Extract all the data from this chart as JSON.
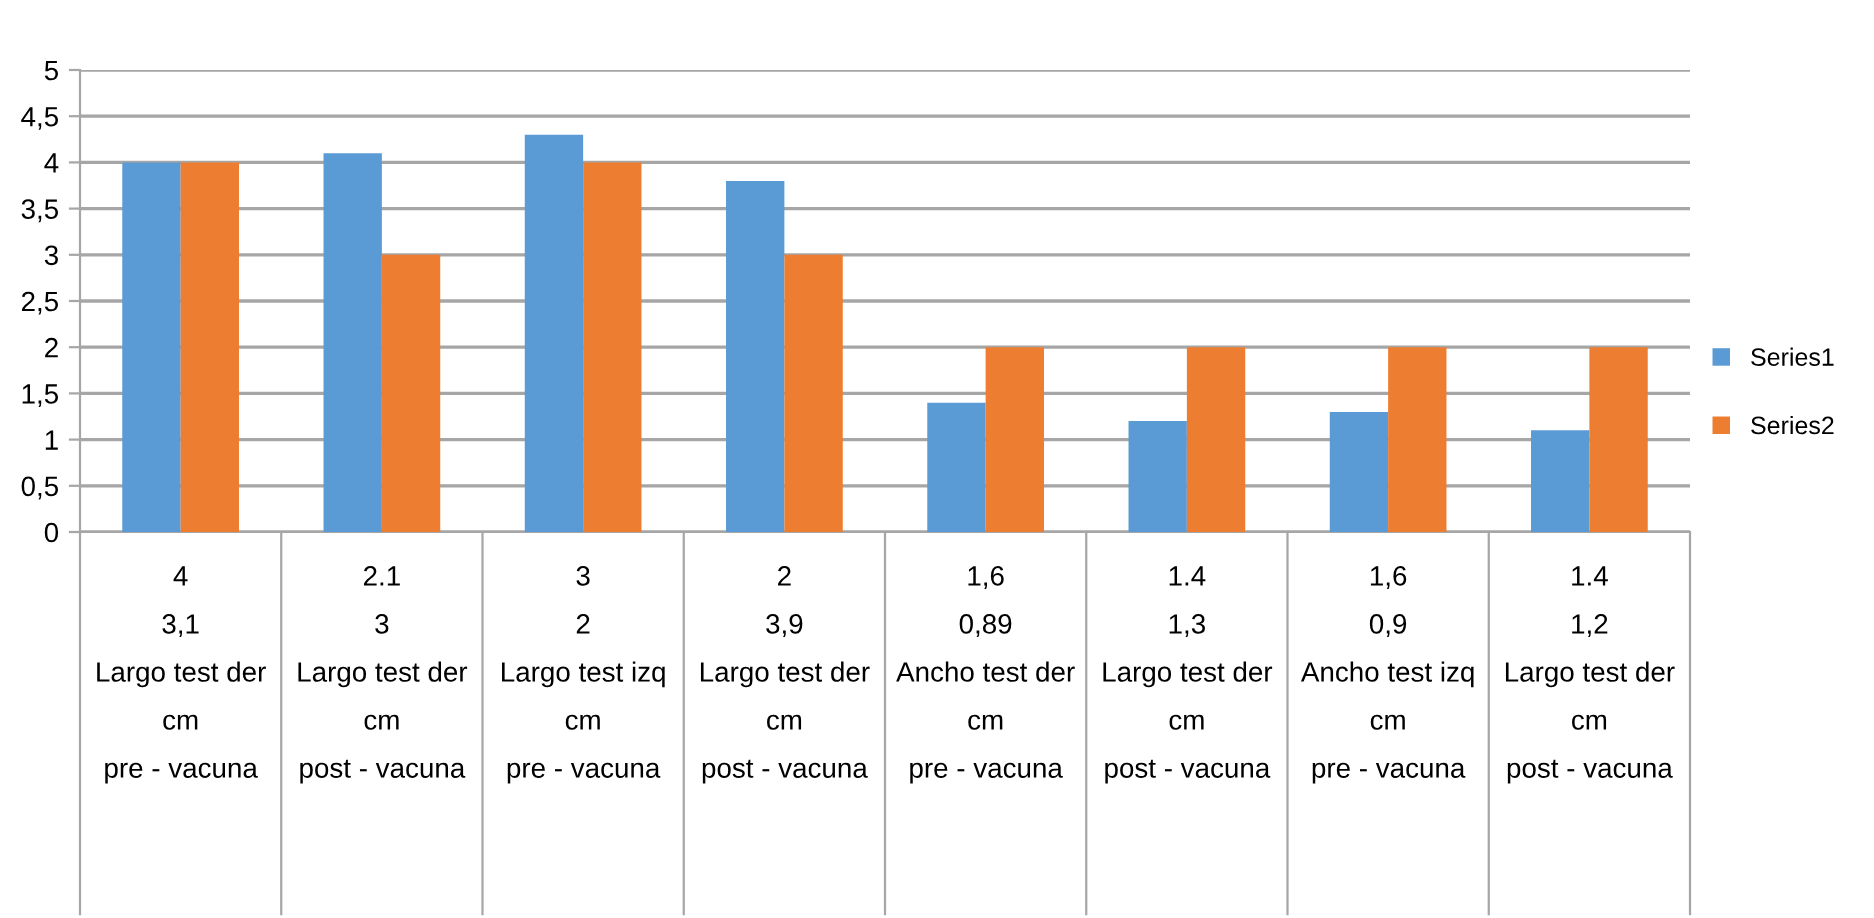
{
  "chart_data": {
    "type": "bar",
    "categories": [
      "4\n3,1\nLargo test der\ncm\npre - vacuna",
      "2.1\n3\nLargo test der\ncm\npost - vacuna",
      "3\n2\nLargo test izq\ncm\npre - vacuna",
      "2\n3,9\nLargo test der\ncm\npost - vacuna",
      "1,6\n0,89\nAncho test der\ncm\npre - vacuna",
      "1.4\n1,3\nLargo test der\ncm\npost - vacuna",
      "1,6\n0,9\nAncho test izq\ncm\npre - vacuna",
      "1.4\n1,2\nLargo test der\ncm\npost - vacuna"
    ],
    "series": [
      {
        "name": "Series1",
        "color": "#5b9bd5",
        "values": [
          4,
          4.1,
          4.3,
          3.8,
          1.4,
          1.2,
          1.3,
          1.1
        ]
      },
      {
        "name": "Series2",
        "color": "#ed7d31",
        "values": [
          4,
          3,
          4,
          3,
          2,
          2,
          2,
          2
        ]
      }
    ],
    "ylim": [
      0,
      5
    ],
    "yticks": [
      0,
      {
        "value": 0.5,
        "label": "0,5"
      },
      1,
      {
        "value": 1.5,
        "label": "1,5"
      },
      2,
      {
        "value": 2.5,
        "label": "2,5"
      },
      3,
      {
        "value": 3.5,
        "label": "3,5"
      },
      4,
      {
        "value": 4.5,
        "label": "4,5"
      },
      5
    ],
    "grid": "y",
    "legend": "right"
  }
}
